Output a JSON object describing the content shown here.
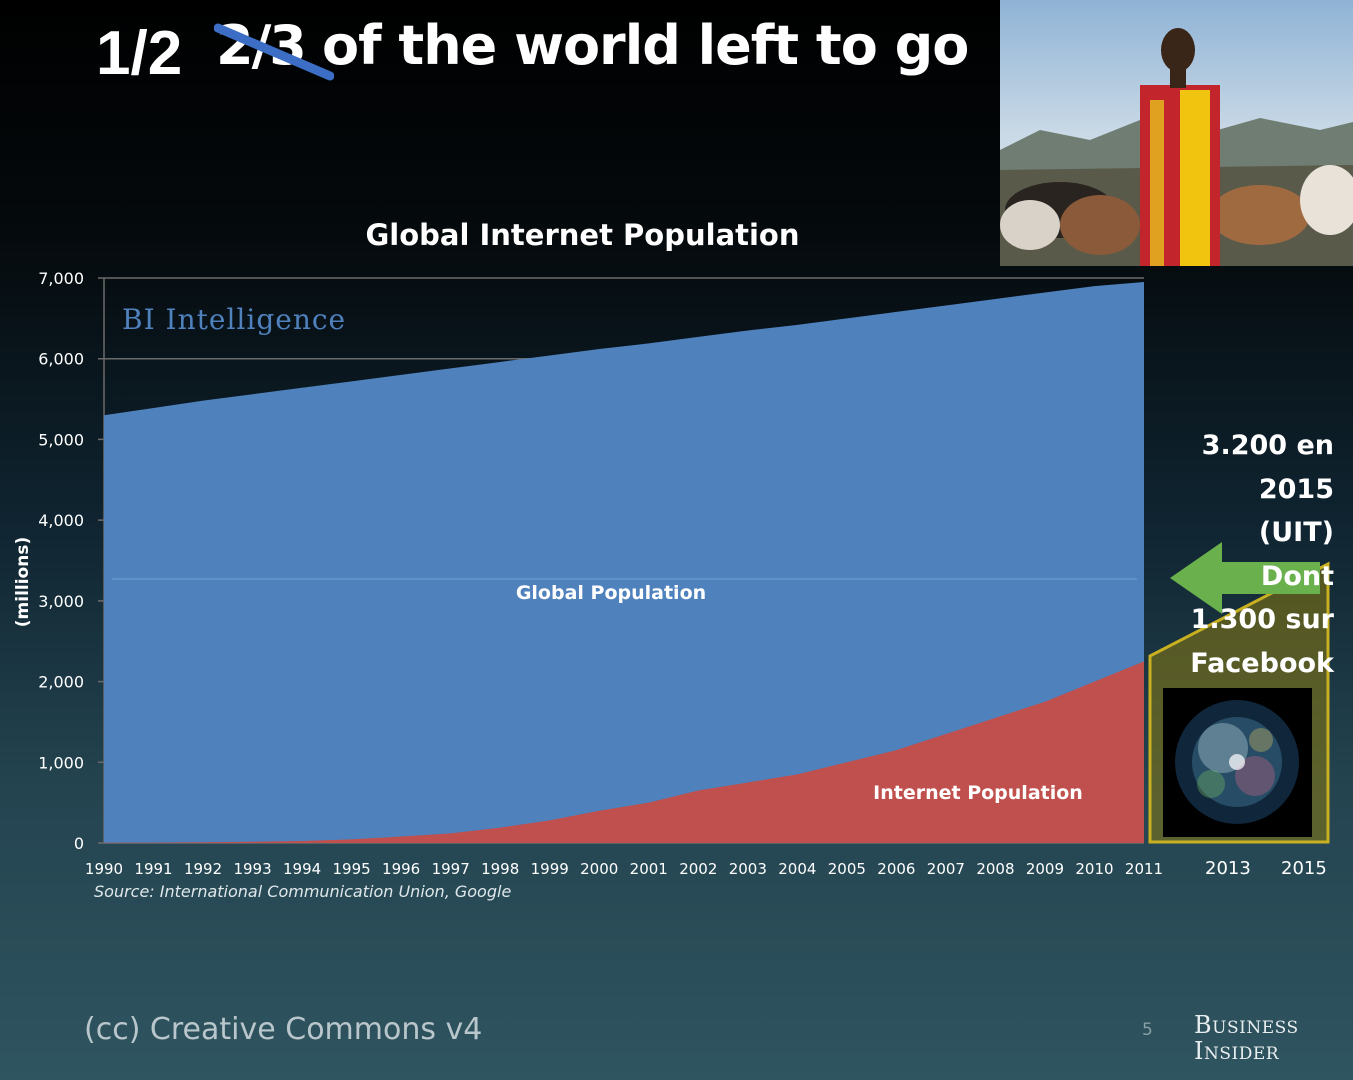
{
  "slide": {
    "title_new": "1/2",
    "title_struck": "2/3",
    "title_rest": "of the world left to go",
    "side_note_lines": [
      "3.200 en",
      "2015",
      "(UIT)",
      "Dont",
      "1.300 sur",
      "Facebook"
    ],
    "year_left": "2013",
    "year_right": "2015",
    "footer": "(cc) Creative Commons v4",
    "page_number": "5",
    "logo_line1": "Business",
    "logo_line2": "Insider"
  },
  "colors": {
    "global_area": "#4f81bd",
    "internet_area": "#c0504d",
    "arrow": "#6ab04c",
    "trapezoid": "#b0a020",
    "strike": "#3b6ec4"
  },
  "chart_data": {
    "type": "area",
    "title": "Global Internet Population",
    "watermark": "BI Intelligence",
    "ylabel": "(millions)",
    "ylim": [
      0,
      7000
    ],
    "yticks": [
      "0",
      "1,000",
      "2,000",
      "3,000",
      "4,000",
      "5,000",
      "6,000",
      "7,000"
    ],
    "yticks_values": [
      0,
      1000,
      2000,
      3000,
      4000,
      5000,
      6000,
      7000
    ],
    "x": [
      "1990",
      "1991",
      "1992",
      "1993",
      "1994",
      "1995",
      "1996",
      "1997",
      "1998",
      "1999",
      "2000",
      "2001",
      "2002",
      "2003",
      "2004",
      "2005",
      "2006",
      "2007",
      "2008",
      "2009",
      "2010",
      "2011"
    ],
    "series": [
      {
        "name": "Global Population",
        "values": [
          5300,
          5390,
          5480,
          5560,
          5640,
          5720,
          5800,
          5880,
          5960,
          6040,
          6120,
          6190,
          6270,
          6350,
          6420,
          6500,
          6580,
          6660,
          6740,
          6820,
          6900,
          6950
        ]
      },
      {
        "name": "Internet Population",
        "values": [
          3,
          5,
          10,
          15,
          25,
          45,
          80,
          120,
          190,
          280,
          400,
          500,
          650,
          750,
          850,
          1000,
          1150,
          1350,
          1550,
          1750,
          2000,
          2250
        ]
      }
    ],
    "source": "Source: International Communication Union, Google",
    "grid": true
  }
}
